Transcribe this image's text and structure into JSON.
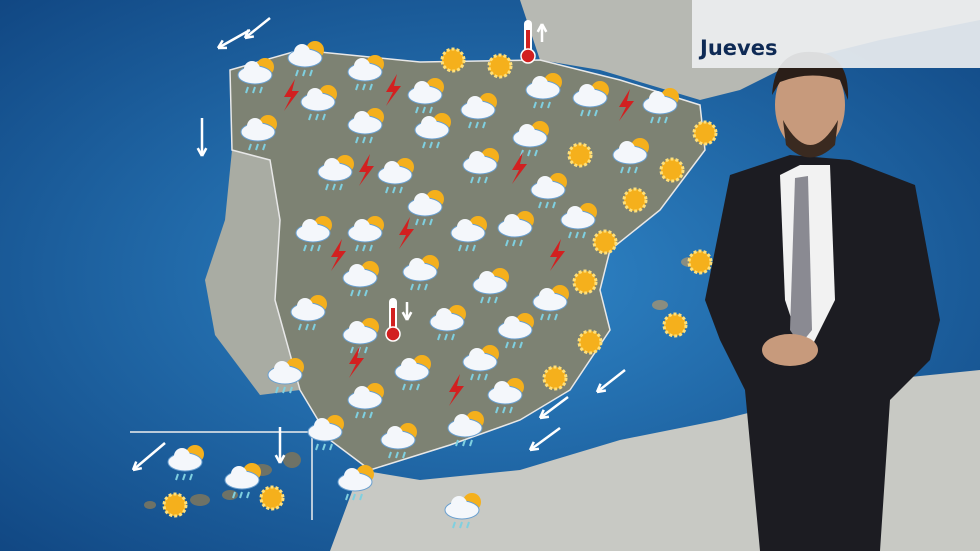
{
  "forecast": {
    "day_label": "Jueves",
    "icon_types": [
      "cloud-sun-rain",
      "storm",
      "sun",
      "sun-haze",
      "thermometer-up",
      "thermometer-down",
      "wind-arrow"
    ],
    "colors": {
      "sea": "#1a5a9a",
      "land": "#8c8f80",
      "lightning": "#d22020",
      "sun": "#f5b01c",
      "label_text": "#0e2a55"
    }
  }
}
